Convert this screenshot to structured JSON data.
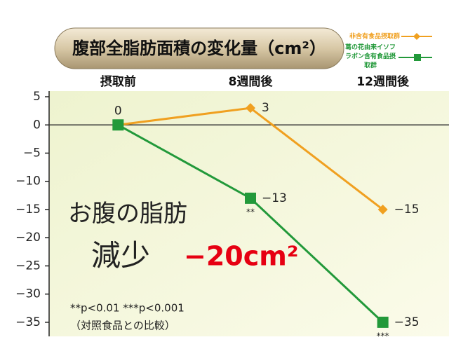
{
  "chart_data": {
    "type": "line",
    "title": "腹部全脂肪面積の変化量（cm²）",
    "categories": [
      "摂取前",
      "8週間後",
      "12週間後"
    ],
    "series": [
      {
        "name": "非含有食品摂取群",
        "color": "#f0a020",
        "marker": "diamond",
        "values": [
          0,
          3,
          -15
        ],
        "value_labels": [
          "0",
          "3",
          "−15"
        ],
        "significance": [
          null,
          null,
          null
        ]
      },
      {
        "name": "葛の花由来イソフラボン含有食品摂取群",
        "color": "#22993a",
        "marker": "square",
        "values": [
          0,
          -13,
          -35
        ],
        "value_labels": [
          null,
          "−13",
          "−35"
        ],
        "significance": [
          null,
          "**",
          "***"
        ]
      }
    ],
    "ylim": [
      -37.5,
      6
    ],
    "yticks": [
      5,
      0,
      {
        "value": -5,
        "label": "−5"
      },
      {
        "value": -10,
        "label": "−10"
      },
      {
        "value": -15,
        "label": "−15"
      },
      {
        "value": -20,
        "label": "−20"
      },
      {
        "value": -25,
        "label": "−25"
      },
      {
        "value": -30,
        "label": "−30"
      },
      {
        "value": -35,
        "label": "−35"
      }
    ],
    "annotations": {
      "headline_1": "お腹の脂肪",
      "headline_2": "減少",
      "headline_value": "−20cm²",
      "note_1": "**p<0.01 ***p<0.001",
      "note_2": "（対照食品との比較）"
    }
  }
}
